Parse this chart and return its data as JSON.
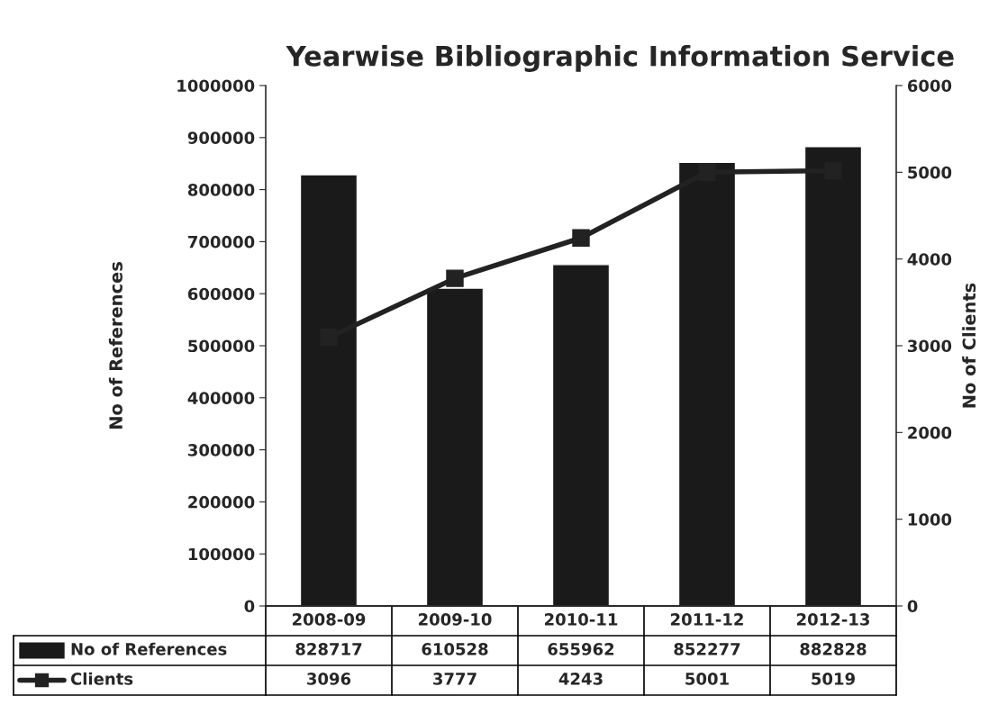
{
  "chart_data": {
    "type": "bar",
    "title": "Yearwise Bibliographic Information Service",
    "ylabel": "No of References",
    "y2label": "No of Clients",
    "categories": [
      "2008-09",
      "2009-10",
      "2010-11",
      "2011-12",
      "2012-13"
    ],
    "series": [
      {
        "name": "No of References",
        "color": "#1a1a1a",
        "values": [
          828717,
          610528,
          655962,
          852277,
          882828
        ]
      },
      {
        "name": "Clients",
        "type": "line",
        "axis": "y2",
        "color": "#222222",
        "marker": "square",
        "values": [
          3096,
          3777,
          4243,
          5001,
          5019
        ]
      }
    ],
    "ylim": [
      0,
      1000000
    ],
    "yticks": [
      0,
      100000,
      200000,
      300000,
      400000,
      500000,
      600000,
      700000,
      800000,
      900000,
      1000000
    ],
    "y2lim": [
      0,
      6000
    ],
    "y2ticks": [
      0,
      1000,
      2000,
      3000,
      4000,
      5000,
      6000
    ],
    "grid": false,
    "legend": "bottom",
    "data_labels": true
  }
}
